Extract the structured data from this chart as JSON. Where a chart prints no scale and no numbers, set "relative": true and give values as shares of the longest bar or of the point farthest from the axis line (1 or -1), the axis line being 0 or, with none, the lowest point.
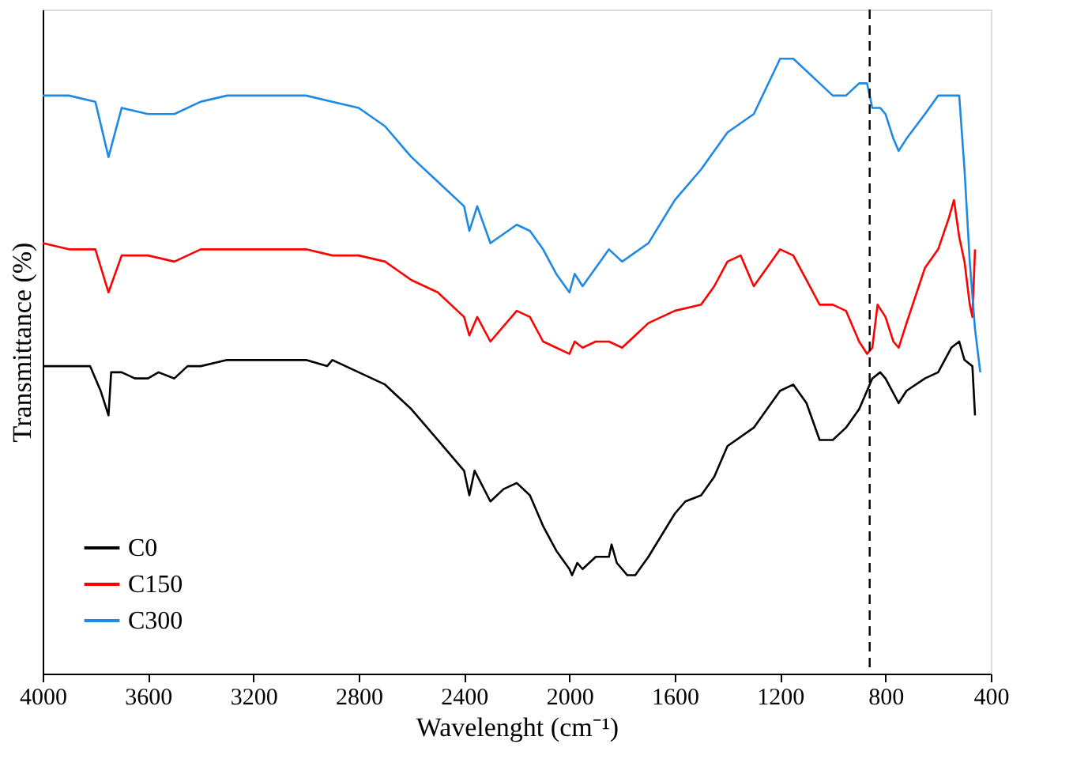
{
  "chart_data": {
    "type": "line",
    "relative": true,
    "xlabel": "Wavelenght (cm⁻¹)",
    "ylabel": "Transmittance (%)",
    "xlim": [
      4000,
      400
    ],
    "xticks": [
      4000,
      3600,
      3200,
      2800,
      2400,
      2000,
      1600,
      1200,
      800,
      400
    ],
    "grid": false,
    "legend": "bottom left",
    "line_style": "solid",
    "marker": "none",
    "ref_lines": [
      {
        "axis": "x",
        "value": 860,
        "label": null,
        "color": "#000000",
        "line_style": "dashed"
      }
    ],
    "series": [
      {
        "name": "C0",
        "color": "#000000",
        "x": [
          4000,
          3900,
          3820,
          3780,
          3750,
          3740,
          3700,
          3650,
          3600,
          3560,
          3500,
          3450,
          3400,
          3300,
          3000,
          2920,
          2900,
          2850,
          2800,
          2700,
          2600,
          2500,
          2400,
          2380,
          2360,
          2300,
          2250,
          2200,
          2150,
          2100,
          2050,
          2000,
          1990,
          1970,
          1950,
          1900,
          1850,
          1840,
          1820,
          1780,
          1750,
          1700,
          1600,
          1560,
          1500,
          1450,
          1400,
          1300,
          1200,
          1150,
          1100,
          1050,
          1000,
          950,
          900,
          880,
          850,
          820,
          800,
          750,
          720,
          650,
          600,
          550,
          520,
          500,
          470,
          460
        ],
        "values": [
          0.5,
          0.5,
          0.5,
          0.46,
          0.42,
          0.49,
          0.49,
          0.48,
          0.48,
          0.49,
          0.48,
          0.5,
          0.5,
          0.51,
          0.51,
          0.5,
          0.51,
          0.5,
          0.49,
          0.47,
          0.43,
          0.38,
          0.33,
          0.29,
          0.33,
          0.28,
          0.3,
          0.31,
          0.29,
          0.24,
          0.2,
          0.17,
          0.16,
          0.18,
          0.17,
          0.19,
          0.19,
          0.21,
          0.18,
          0.16,
          0.16,
          0.19,
          0.26,
          0.28,
          0.29,
          0.32,
          0.37,
          0.4,
          0.46,
          0.47,
          0.44,
          0.38,
          0.38,
          0.4,
          0.43,
          0.45,
          0.48,
          0.49,
          0.48,
          0.44,
          0.46,
          0.48,
          0.49,
          0.53,
          0.54,
          0.51,
          0.5,
          0.42
        ]
      },
      {
        "name": "C150",
        "color": "#ff0000",
        "x": [
          4000,
          3900,
          3800,
          3750,
          3700,
          3600,
          3500,
          3400,
          3000,
          2900,
          2800,
          2700,
          2600,
          2500,
          2400,
          2380,
          2350,
          2300,
          2200,
          2150,
          2100,
          2050,
          2000,
          1980,
          1950,
          1900,
          1850,
          1800,
          1750,
          1700,
          1600,
          1500,
          1450,
          1400,
          1350,
          1300,
          1250,
          1200,
          1150,
          1100,
          1050,
          1000,
          950,
          900,
          870,
          850,
          830,
          800,
          770,
          750,
          720,
          650,
          600,
          560,
          540,
          520,
          500,
          480,
          470,
          460
        ],
        "values": [
          0.7,
          0.69,
          0.69,
          0.62,
          0.68,
          0.68,
          0.67,
          0.69,
          0.69,
          0.68,
          0.68,
          0.67,
          0.64,
          0.62,
          0.58,
          0.55,
          0.58,
          0.54,
          0.59,
          0.58,
          0.54,
          0.53,
          0.52,
          0.54,
          0.53,
          0.54,
          0.54,
          0.53,
          0.55,
          0.57,
          0.59,
          0.6,
          0.63,
          0.67,
          0.68,
          0.63,
          0.66,
          0.69,
          0.68,
          0.64,
          0.6,
          0.6,
          0.59,
          0.54,
          0.52,
          0.53,
          0.6,
          0.58,
          0.54,
          0.53,
          0.57,
          0.66,
          0.69,
          0.74,
          0.77,
          0.71,
          0.67,
          0.6,
          0.58,
          0.69
        ]
      },
      {
        "name": "C300",
        "color": "#1e88e5",
        "x": [
          4000,
          3900,
          3800,
          3750,
          3700,
          3600,
          3500,
          3400,
          3300,
          3000,
          2900,
          2800,
          2700,
          2600,
          2500,
          2400,
          2380,
          2350,
          2300,
          2200,
          2150,
          2100,
          2050,
          2000,
          1980,
          1950,
          1900,
          1850,
          1800,
          1700,
          1600,
          1500,
          1400,
          1300,
          1200,
          1150,
          1100,
          1050,
          1000,
          950,
          900,
          870,
          850,
          820,
          800,
          770,
          750,
          720,
          650,
          600,
          550,
          520,
          500,
          480,
          460,
          440
        ],
        "values": [
          0.94,
          0.94,
          0.93,
          0.84,
          0.92,
          0.91,
          0.91,
          0.93,
          0.94,
          0.94,
          0.93,
          0.92,
          0.89,
          0.84,
          0.8,
          0.76,
          0.72,
          0.76,
          0.7,
          0.73,
          0.72,
          0.69,
          0.65,
          0.62,
          0.65,
          0.63,
          0.66,
          0.69,
          0.67,
          0.7,
          0.77,
          0.82,
          0.88,
          0.91,
          1.0,
          1.0,
          0.98,
          0.96,
          0.94,
          0.94,
          0.96,
          0.96,
          0.92,
          0.92,
          0.91,
          0.87,
          0.85,
          0.87,
          0.91,
          0.94,
          0.94,
          0.94,
          0.82,
          0.67,
          0.56,
          0.49
        ]
      }
    ]
  }
}
